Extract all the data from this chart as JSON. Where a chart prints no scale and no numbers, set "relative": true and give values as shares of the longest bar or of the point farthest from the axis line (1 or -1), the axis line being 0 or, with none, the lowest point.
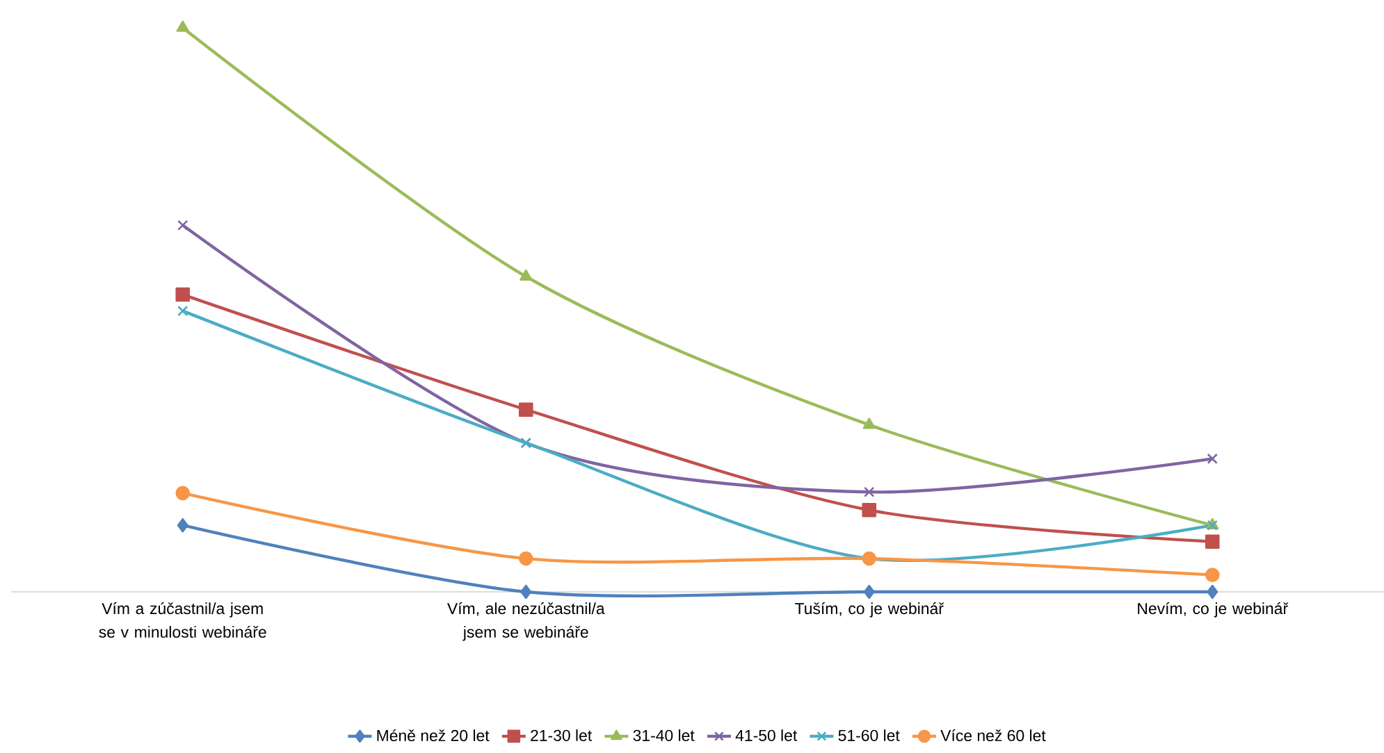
{
  "chart_data": {
    "type": "line",
    "relative": true,
    "legend": "bottom",
    "line_style": "solid",
    "categories": [
      "Vím a zúčastnil/a jsem se v minulosti webináře",
      "Vím, ale nezúčastnil/a jsem se webináře",
      "Tuším, co je webinář",
      "Nevím, co je webinář"
    ],
    "series": [
      {
        "name": "Méně než 20 let",
        "color": "#4f81bd",
        "marker": "diamond",
        "values": [
          0.118,
          0,
          0,
          0
        ]
      },
      {
        "name": "21-30 let",
        "color": "#c0504d",
        "marker": "square",
        "values": [
          0.527,
          0.323,
          0.145,
          0.089
        ]
      },
      {
        "name": "31-40 let",
        "color": "#9bbb59",
        "marker": "triangle",
        "values": [
          1,
          0.559,
          0.296,
          0.118
        ]
      },
      {
        "name": "41-50 let",
        "color": "#8064a2",
        "marker": "cross",
        "values": [
          0.65,
          0.264,
          0.177,
          0.236
        ]
      },
      {
        "name": "51-60 let",
        "color": "#4bacc6",
        "marker": "cross",
        "values": [
          0.498,
          0.264,
          0.059,
          0.118
        ]
      },
      {
        "name": "Více než 60 let",
        "color": "#f79646",
        "marker": "circle",
        "values": [
          0.175,
          0.059,
          0.059,
          0.03
        ]
      }
    ]
  }
}
